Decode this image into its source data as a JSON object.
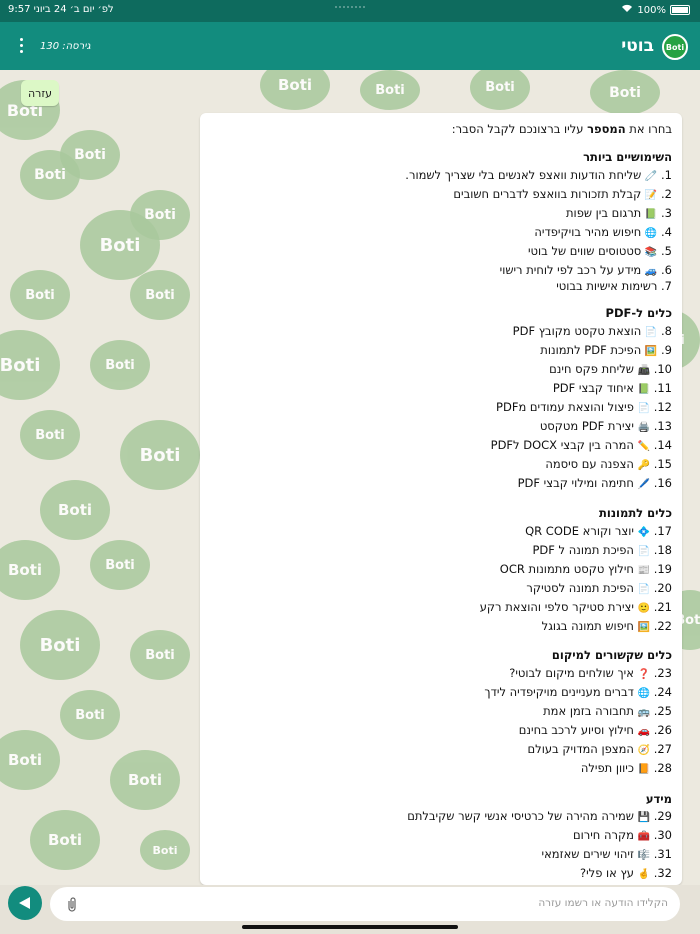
{
  "status": {
    "time": "9:57",
    "date": "יום ב׳ 24 ביוני",
    "ampm": "לפ׳",
    "battery": "100%"
  },
  "header": {
    "avatar_text": "Boti",
    "title": "בוטי",
    "version": "גירסה: 130"
  },
  "help_chip": "עזרה",
  "message": {
    "intro_before": "בחרו את ",
    "intro_bold": "המספר",
    "intro_after": " עליו ברצונכם לקבל הסבר:",
    "sections": [
      {
        "title": "השימושיים ביותר",
        "items": [
          {
            "n": "1.",
            "e": "🧷",
            "t": "שליחת הודעות וואצפ לאנשים בלי שצריך לשמור."
          },
          {
            "n": "2.",
            "e": "📝",
            "t": "קבלת תזכורות בוואצפ לדברים חשובים"
          },
          {
            "n": "3.",
            "e": "📗",
            "t": "תרגום בין שפות"
          },
          {
            "n": "4.",
            "e": "🌐",
            "t": "חיפוש מהיר בויקיפדיה"
          },
          {
            "n": "5.",
            "e": "📚",
            "t": "סטטוסים שווים של בוטי"
          },
          {
            "n": "6.",
            "e": "🚙",
            "t": "מידע על רכב לפי לוחית רישוי"
          },
          {
            "n": "7.",
            "e": "",
            "t": "רשימות אישיות בבוטי"
          }
        ]
      },
      {
        "title": "כלים ל-PDF",
        "items": [
          {
            "n": "8.",
            "e": "📄",
            "t": "הוצאת טקסט מקובץ PDF"
          },
          {
            "n": "9.",
            "e": "🖼️",
            "t": "הפיכת PDF לתמונות"
          },
          {
            "n": "10.",
            "e": "📠",
            "t": "שליחת פקס חינם"
          },
          {
            "n": "11.",
            "e": "📗",
            "t": "איחוד קבצי PDF"
          },
          {
            "n": "12.",
            "e": "📄",
            "t": "פיצול והוצאת עמודים מPDF"
          },
          {
            "n": "13.",
            "e": "🖨️",
            "t": "יצירת PDF מטקסט"
          },
          {
            "n": "14.",
            "e": "✏️",
            "t": "המרה בין קבצי DOCX לPDF"
          },
          {
            "n": "15.",
            "e": "🔑",
            "t": "הצפנה עם סיסמה"
          },
          {
            "n": "16.",
            "e": "🖊️",
            "t": "חתימה ומילוי קבצי PDF"
          }
        ]
      },
      {
        "title": "כלים לתמונות",
        "items": [
          {
            "n": "17.",
            "e": "💠",
            "t": "יוצר וקורא QR CODE"
          },
          {
            "n": "18.",
            "e": "📄",
            "t": "הפיכת תמונה ל PDF"
          },
          {
            "n": "19.",
            "e": "📰",
            "t": "חילוץ טקסט מתמונות OCR"
          },
          {
            "n": "20.",
            "e": "📄",
            "t": "הפיכת תמונה לסטיקר"
          },
          {
            "n": "21.",
            "e": "🙂",
            "t": "יצירת סטיקר סלפי והוצאת רקע"
          },
          {
            "n": "22.",
            "e": "🖼️",
            "t": "חיפוש תמונה בגוגל"
          }
        ]
      },
      {
        "title": "כלים שקשורים למיקום",
        "items": [
          {
            "n": "23.",
            "e": "❓",
            "t": "איך שולחים מיקום לבוטי?"
          },
          {
            "n": "24.",
            "e": "🌐",
            "t": "דברים מעניינים מויקיפדיה לידך"
          },
          {
            "n": "25.",
            "e": "🚌",
            "t": "תחבורה בזמן אמת"
          },
          {
            "n": "26.",
            "e": "🚗",
            "t": "חילוץ וסיוע לרכב בחינם"
          },
          {
            "n": "27.",
            "e": "🧭",
            "t": "המצפן המדויק בעולם"
          },
          {
            "n": "28.",
            "e": "📙",
            "t": "כיוון תפילה"
          }
        ]
      },
      {
        "title": "מידע",
        "items": [
          {
            "n": "29.",
            "e": "💾",
            "t": "שמירה מהירה של כרטיסי אנשי קשר שקיבלתם"
          },
          {
            "n": "30.",
            "e": "🧰",
            "t": "מקרה חירום"
          },
          {
            "n": "31.",
            "e": "🎼",
            "t": "זיהוי שירים שאזמאי"
          },
          {
            "n": "32.",
            "e": "🤞",
            "t": "עץ או פלי?"
          }
        ]
      }
    ]
  },
  "composer": {
    "placeholder": "הקלידו הודעה או רשמו עזרה"
  },
  "colors": {
    "header": "#128c7e",
    "status": "#0e6b5e",
    "bubble_out": "#dcf8c6",
    "deco": "#a9c99d"
  }
}
